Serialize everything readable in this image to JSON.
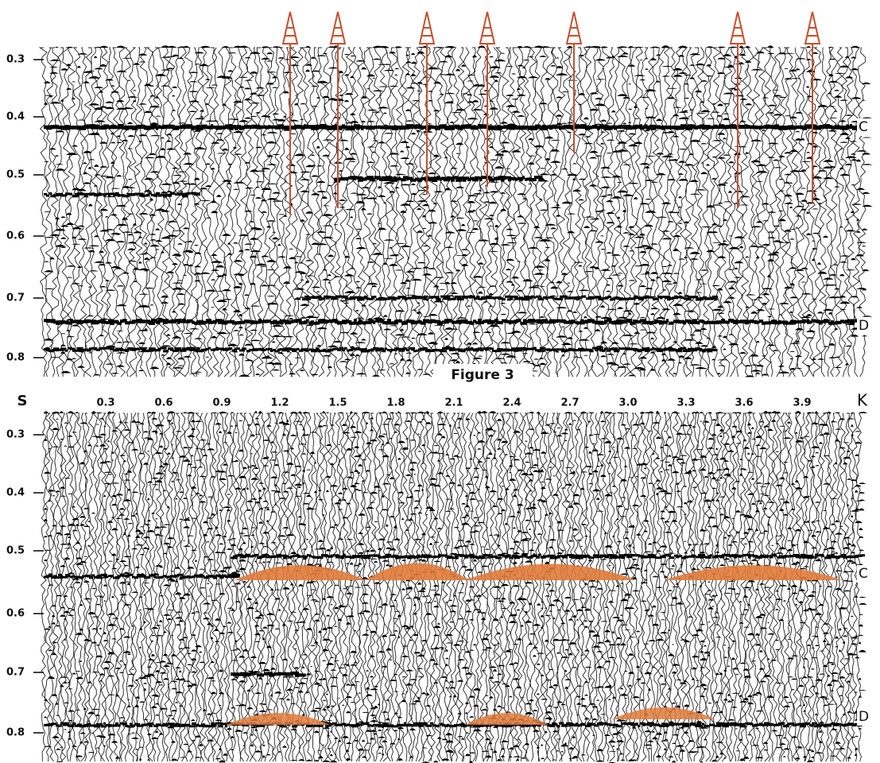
{
  "figure": {
    "caption": "Figure 3",
    "time_unit": "S",
    "distance_unit": "K",
    "top_panel": {
      "y_ticks": [
        "0.3",
        "0.4",
        "0.5",
        "0.6",
        "0.7",
        "0.8"
      ],
      "horizon_labels": [
        "C",
        "D"
      ]
    },
    "distance_ticks": [
      "0.3",
      "0.6",
      "0.9",
      "1.2",
      "1.5",
      "1.8",
      "2.1",
      "2.4",
      "2.7",
      "3.0",
      "3.3",
      "3.6",
      "3.9"
    ],
    "bottom_panel": {
      "y_ticks": [
        "0.3",
        "0.4",
        "0.5",
        "0.6",
        "0.7",
        "0.8"
      ],
      "horizon_labels": [
        "C",
        "D"
      ]
    }
  }
}
